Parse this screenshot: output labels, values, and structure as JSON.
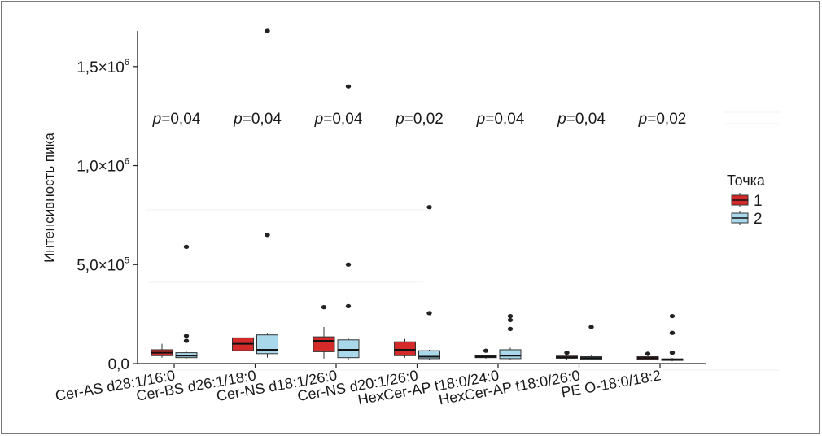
{
  "chart_data": {
    "type": "box",
    "ylabel": "Интенсивность пика",
    "xlabel": "",
    "ylim": [
      0,
      1680000
    ],
    "y_ticks": [
      {
        "value": 0,
        "base": "0,0",
        "exp": ""
      },
      {
        "value": 500000,
        "base": "5,0×10",
        "exp": "5"
      },
      {
        "value": 1000000,
        "base": "1,0×10",
        "exp": "6"
      },
      {
        "value": 1500000,
        "base": "1,5×10",
        "exp": "6"
      }
    ],
    "categories": [
      "Cer-AS d28:1/16:0",
      "Cer-BS d26:1/18:0",
      "Cer-NS d18:1/26:0",
      "Cer-NS d20:1/26:0",
      "HexCer-AP t18:0/24:0",
      "HexCer-AP t18:0/26:0",
      "PE O-18:0/18:2"
    ],
    "p_values": [
      {
        "p": "p",
        "v": "=0,04"
      },
      {
        "p": "p",
        "v": "=0,04"
      },
      {
        "p": "p",
        "v": "=0,04"
      },
      {
        "p": "p",
        "v": "=0,02"
      },
      {
        "p": "p",
        "v": "=0,04"
      },
      {
        "p": "p",
        "v": "=0,04"
      },
      {
        "p": "p",
        "v": "=0,02"
      }
    ],
    "legend": {
      "title": "Точка",
      "position": "right"
    },
    "series": [
      {
        "name": "1",
        "color": "#d42a2a",
        "boxes": [
          {
            "min": 30000,
            "q1": 40000,
            "median": 55000,
            "q3": 70000,
            "max": 100000,
            "outliers": []
          },
          {
            "min": 45000,
            "q1": 65000,
            "median": 100000,
            "q3": 130000,
            "max": 255000,
            "outliers": []
          },
          {
            "min": 25000,
            "q1": 60000,
            "median": 115000,
            "q3": 135000,
            "max": 185000,
            "outliers": [
              285000
            ]
          },
          {
            "min": 30000,
            "q1": 40000,
            "median": 70000,
            "q3": 110000,
            "max": 125000,
            "outliers": []
          },
          {
            "min": 25000,
            "q1": 30000,
            "median": 35000,
            "q3": 40000,
            "max": 45000,
            "outliers": [
              65000
            ]
          },
          {
            "min": 20000,
            "q1": 27000,
            "median": 32000,
            "q3": 38000,
            "max": 48000,
            "outliers": [
              55000
            ]
          },
          {
            "min": 18000,
            "q1": 22000,
            "median": 28000,
            "q3": 35000,
            "max": 42000,
            "outliers": [
              50000
            ]
          }
        ]
      },
      {
        "name": "2",
        "color": "#a8d8ea",
        "boxes": [
          {
            "min": 25000,
            "q1": 30000,
            "median": 40000,
            "q3": 55000,
            "max": 60000,
            "outliers": [
              590000,
              140000,
              115000
            ]
          },
          {
            "min": 30000,
            "q1": 50000,
            "median": 70000,
            "q3": 145000,
            "max": 155000,
            "outliers": [
              1680000,
              650000
            ]
          },
          {
            "min": 20000,
            "q1": 30000,
            "median": 70000,
            "q3": 120000,
            "max": 130000,
            "outliers": [
              1400000,
              500000,
              290000
            ]
          },
          {
            "min": 20000,
            "q1": 25000,
            "median": 35000,
            "q3": 65000,
            "max": 70000,
            "outliers": [
              790000,
              255000
            ]
          },
          {
            "min": 20000,
            "q1": 25000,
            "median": 40000,
            "q3": 70000,
            "max": 80000,
            "outliers": [
              240000,
              220000,
              175000
            ]
          },
          {
            "min": 18000,
            "q1": 22000,
            "median": 28000,
            "q3": 35000,
            "max": 40000,
            "outliers": [
              185000
            ]
          },
          {
            "min": 12000,
            "q1": 16000,
            "median": 20000,
            "q3": 24000,
            "max": 28000,
            "outliers": [
              240000,
              155000,
              55000
            ]
          }
        ]
      }
    ]
  }
}
